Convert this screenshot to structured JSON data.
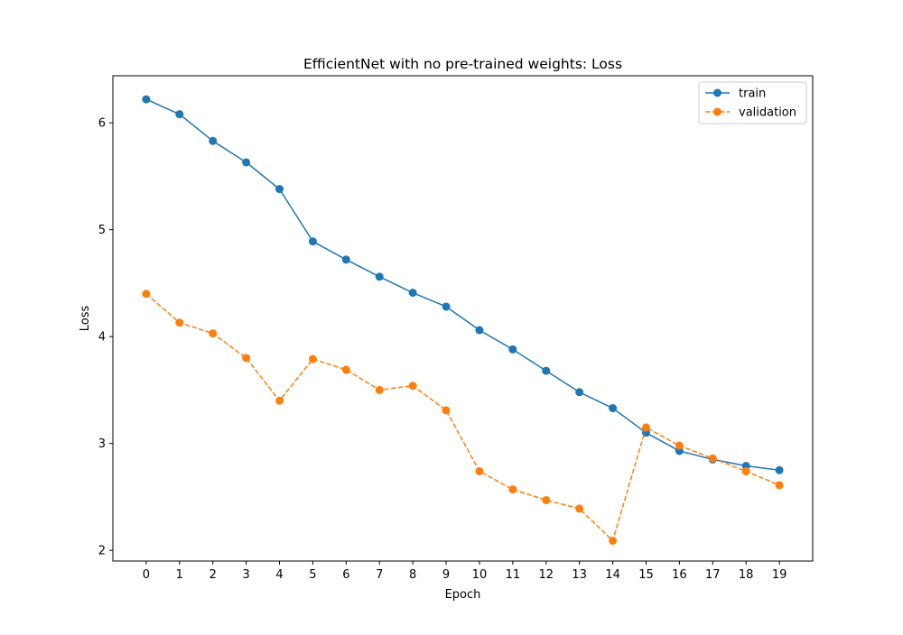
{
  "chart_data": {
    "type": "line",
    "title": "EfficientNet with no pre-trained weights: Loss",
    "xlabel": "Epoch",
    "ylabel": "Loss",
    "x": [
      0,
      1,
      2,
      3,
      4,
      5,
      6,
      7,
      8,
      9,
      10,
      11,
      12,
      13,
      14,
      15,
      16,
      17,
      18,
      19
    ],
    "xlim": [
      -1,
      20
    ],
    "ylim": [
      1.9,
      6.44
    ],
    "yticks": [
      2,
      3,
      4,
      5,
      6
    ],
    "grid": false,
    "legend_position": "top-right",
    "series": [
      {
        "name": "train",
        "color": "#1f77b4",
        "line_style": "solid",
        "marker": "circle",
        "values": [
          6.22,
          6.08,
          5.83,
          5.63,
          5.38,
          4.89,
          4.72,
          4.56,
          4.41,
          4.28,
          4.06,
          3.88,
          3.68,
          3.48,
          3.33,
          3.1,
          2.93,
          2.85,
          2.79,
          2.75
        ]
      },
      {
        "name": "validation",
        "color": "#ff7f0e",
        "line_style": "dashed",
        "marker": "circle",
        "values": [
          4.4,
          4.13,
          4.03,
          3.8,
          3.4,
          3.79,
          3.69,
          3.5,
          3.54,
          3.31,
          2.74,
          2.57,
          2.47,
          2.39,
          2.09,
          3.15,
          2.98,
          2.86,
          2.74,
          2.61
        ]
      }
    ]
  }
}
